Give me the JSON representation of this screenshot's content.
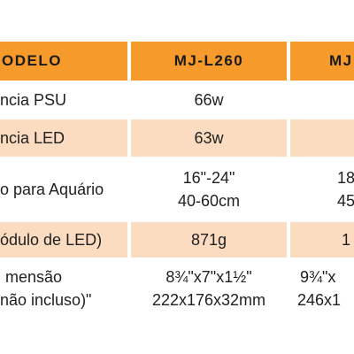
{
  "colors": {
    "header": "#f59a2b",
    "row_tint": "#fbdcc0",
    "row_white": "#ffffff"
  },
  "table": {
    "headers": [
      "ODELO",
      "MJ-L260",
      "MJ"
    ],
    "rows": [
      {
        "label": [
          "ncia PSU"
        ],
        "c1": [
          "66w"
        ],
        "c2": [
          ""
        ]
      },
      {
        "label": [
          "ncia LED"
        ],
        "c1": [
          "63w"
        ],
        "c2": [
          ""
        ]
      },
      {
        "label": [
          "o para Aquário"
        ],
        "c1": [
          "16\"-24\"",
          "40-60cm"
        ],
        "c2": [
          "18",
          "45"
        ]
      },
      {
        "label": [
          "ódulo de LED)"
        ],
        "c1": [
          "871g"
        ],
        "c2": [
          "1"
        ]
      },
      {
        "label": [
          "mensão",
          "não incluso)\""
        ],
        "c1": [
          "8¾\"x7\"x1½\"",
          "222x176x32mm"
        ],
        "c2": [
          "9¾\"x",
          "246x1"
        ]
      }
    ]
  }
}
